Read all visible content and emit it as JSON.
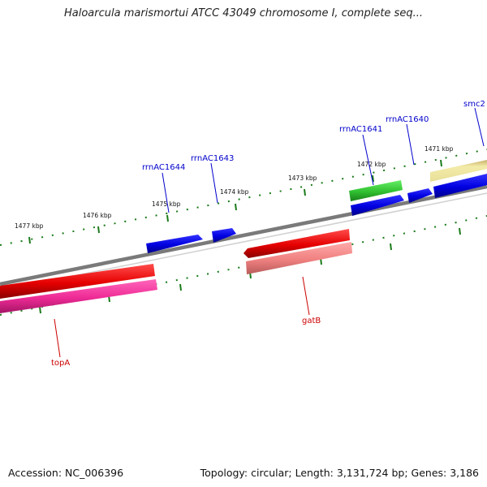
{
  "title": "Haloarcula marismortui ATCC 43049 chromosome I, complete seq...",
  "footer": {
    "accession": "Accession: NC_006396",
    "summary": "Topology: circular; Length: 3,131,724 bp; Genes: 3,186"
  },
  "ruler": {
    "top_labels": [
      "1477 kbp",
      "1476 kbp",
      "1475 kbp",
      "1474 kbp",
      "1473 kbp",
      "1472 kbp",
      "1471 kbp"
    ],
    "tick_color": "#1a7a1a"
  },
  "genes": {
    "labels": {
      "rrnAC1644": "rrnAC1644",
      "rrnAC1643": "rrnAC1643",
      "rrnAC1641": "rrnAC1641",
      "rrnAC1640": "rrnAC1640",
      "smc2": "smc2",
      "gatB": "gatB",
      "topA": "topA"
    },
    "label_colors": {
      "blue": "#0000cc",
      "red": "#cc0000"
    }
  },
  "colors": {
    "backbone": "#808080",
    "cds_blue": "#0000ee",
    "cds_red": "#ee0000",
    "cds_pink": "#ff2a9a",
    "cds_salmon": "#f08080",
    "rna_green": "#33cc33",
    "khaki": "#eee8aa"
  }
}
